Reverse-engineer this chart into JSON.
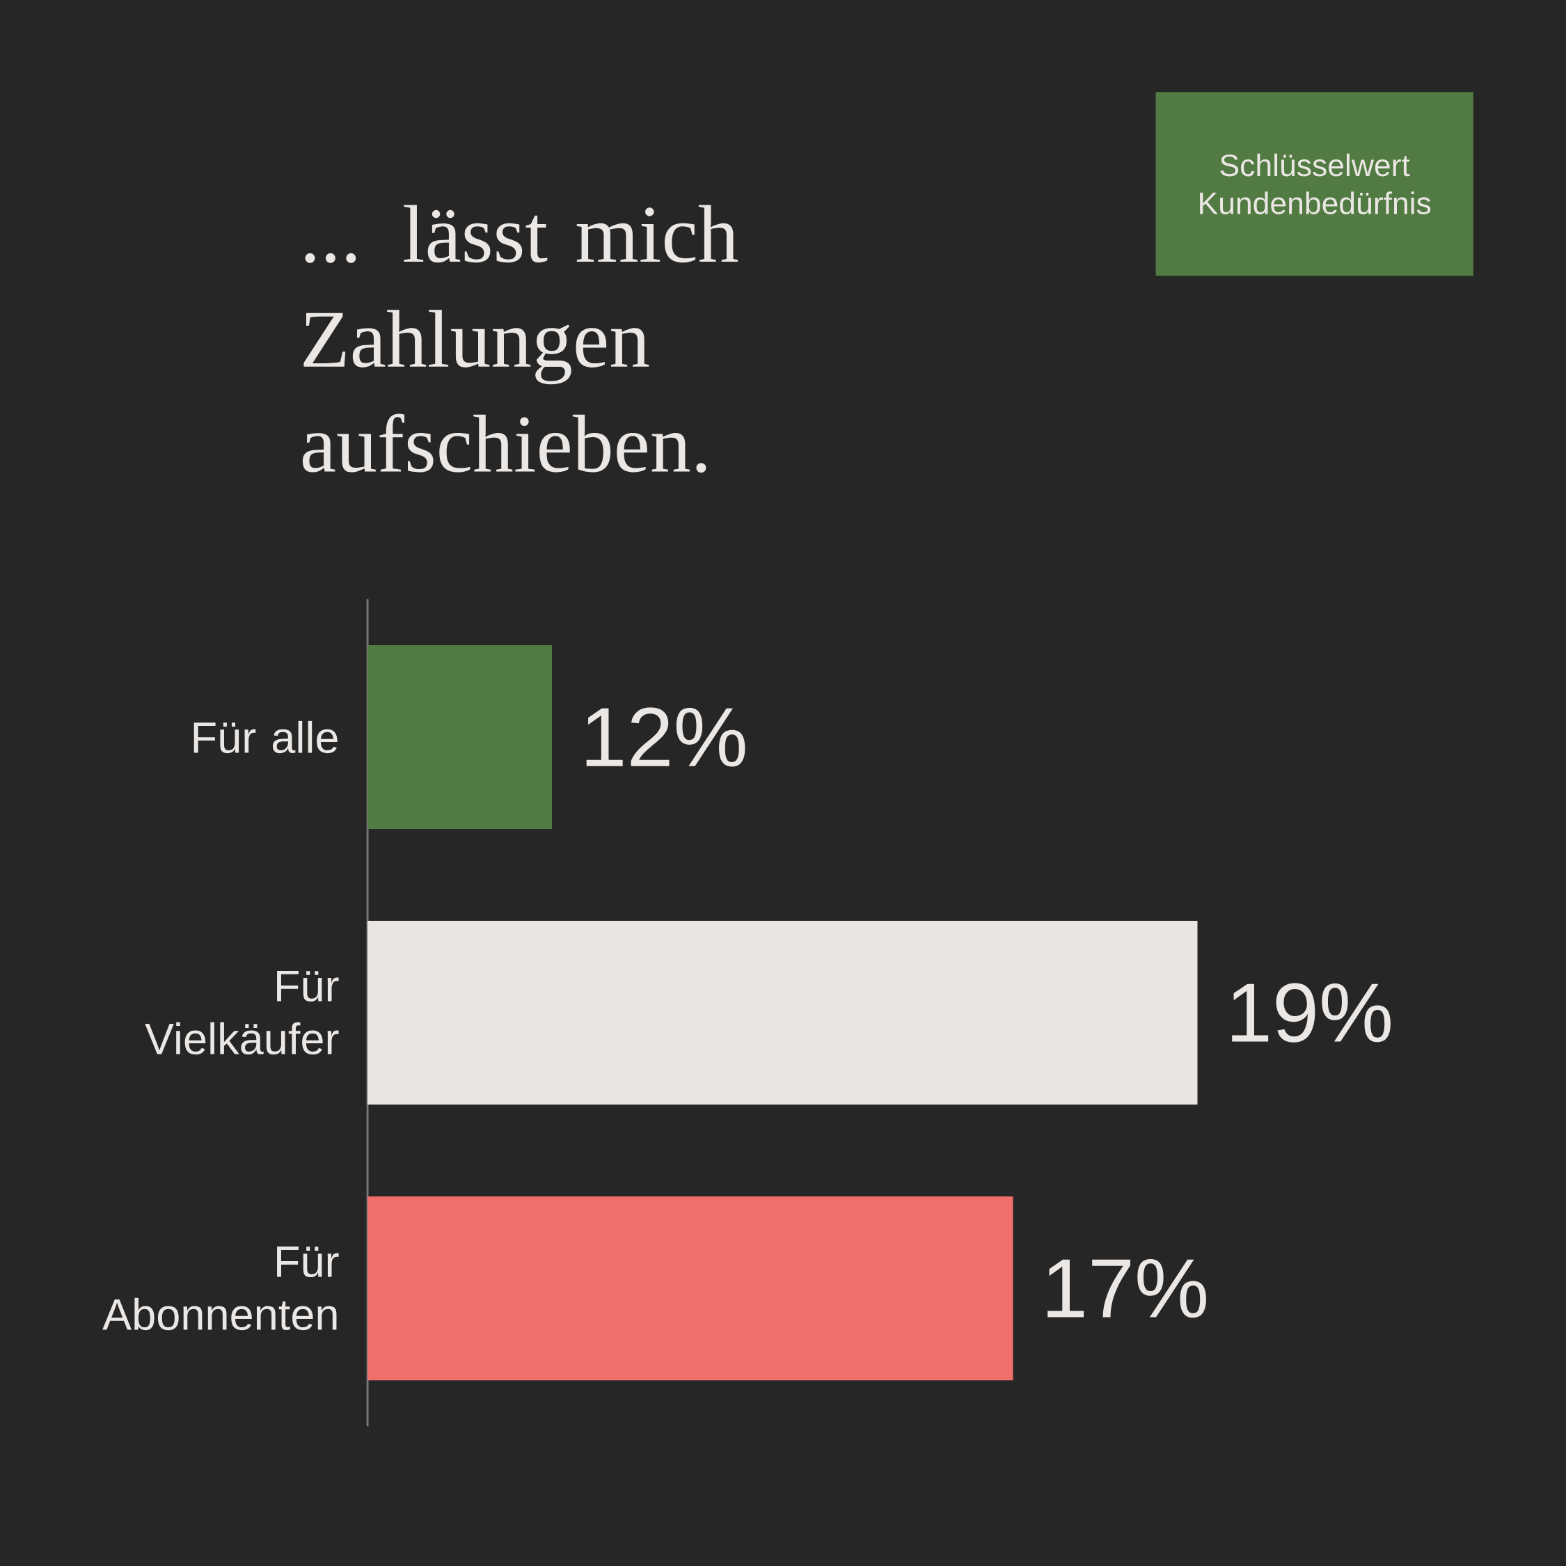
{
  "chart_data": {
    "type": "bar",
    "orientation": "horizontal",
    "title": "... lässt mich Zahlungen aufschieben.",
    "annotations": [
      "Schlüsselwert Kundenbedürfnis"
    ],
    "categories": [
      "Für alle",
      "Für Vielkäufer",
      "Für Abonnenten"
    ],
    "values": [
      12,
      19,
      17
    ],
    "colors": [
      "#527a43",
      "#e8e5e2",
      "#ee6f6b"
    ],
    "value_labels": [
      "12%",
      "19%",
      "17%"
    ],
    "xlim": [
      10,
      19
    ],
    "tick_labels": "y"
  }
}
